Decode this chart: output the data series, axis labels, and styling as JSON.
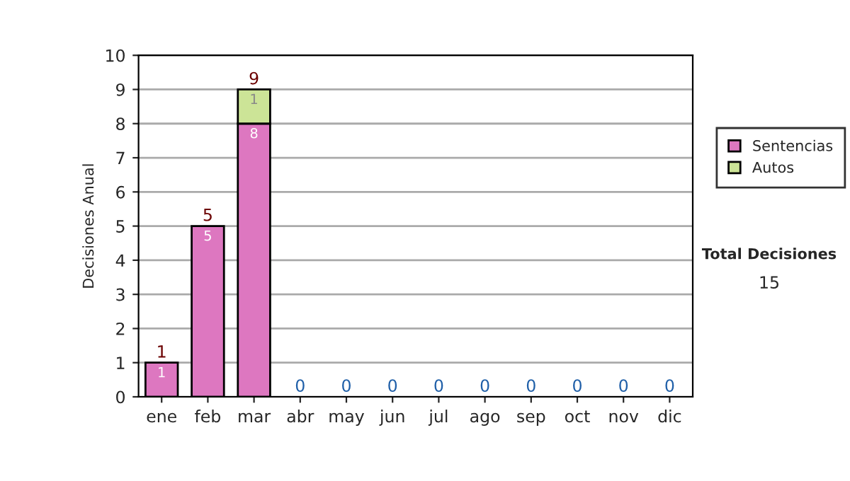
{
  "chart_data": {
    "type": "bar",
    "stacked": true,
    "ylabel": "Decisiones Anual",
    "categories": [
      "ene",
      "feb",
      "mar",
      "abr",
      "may",
      "jun",
      "jul",
      "ago",
      "sep",
      "oct",
      "nov",
      "dic"
    ],
    "series": [
      {
        "name": "Sentencias",
        "color": "#dd77c0",
        "values": [
          1,
          5,
          8,
          0,
          0,
          0,
          0,
          0,
          0,
          0,
          0,
          0
        ],
        "value_labels": [
          "1",
          "5",
          "8",
          null,
          null,
          null,
          null,
          null,
          null,
          null,
          null,
          null
        ]
      },
      {
        "name": "Autos",
        "color": "#cce497",
        "values": [
          0,
          0,
          1,
          0,
          0,
          0,
          0,
          0,
          0,
          0,
          0,
          0
        ],
        "value_labels": [
          null,
          null,
          "1",
          null,
          null,
          null,
          null,
          null,
          null,
          null,
          null,
          null
        ]
      }
    ],
    "totals": [
      "1",
      "5",
      "9",
      "0",
      "0",
      "0",
      "0",
      "0",
      "0",
      "0",
      "0",
      "0"
    ],
    "ylim": [
      0,
      10
    ],
    "yticks": [
      0,
      1,
      2,
      3,
      4,
      5,
      6,
      7,
      8,
      9,
      10
    ],
    "grid": "y",
    "legend": "right",
    "annotations": [
      "Total Decisiones",
      "15"
    ]
  }
}
